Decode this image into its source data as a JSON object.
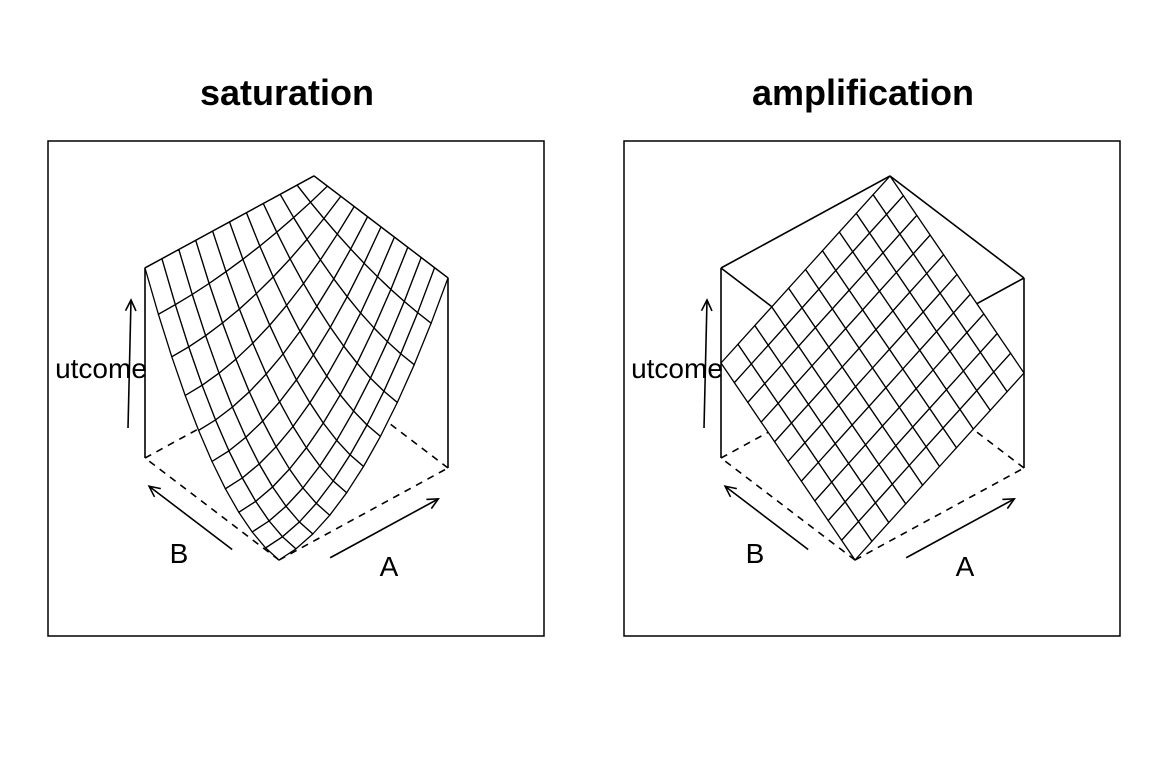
{
  "chart_data": [
    {
      "type": "surface",
      "title": "saturation",
      "xlabel": "A",
      "ylabel": "B",
      "zlabel": "utcome",
      "surface": "saturation",
      "grid_n": 10,
      "box": true,
      "arrows": true,
      "axes": "no tick labels"
    },
    {
      "type": "surface",
      "title": "amplification",
      "xlabel": "A",
      "ylabel": "B",
      "zlabel": "utcome",
      "surface": "amplification",
      "grid_n": 10,
      "box": true,
      "arrows": true,
      "axes": "no tick labels"
    }
  ]
}
